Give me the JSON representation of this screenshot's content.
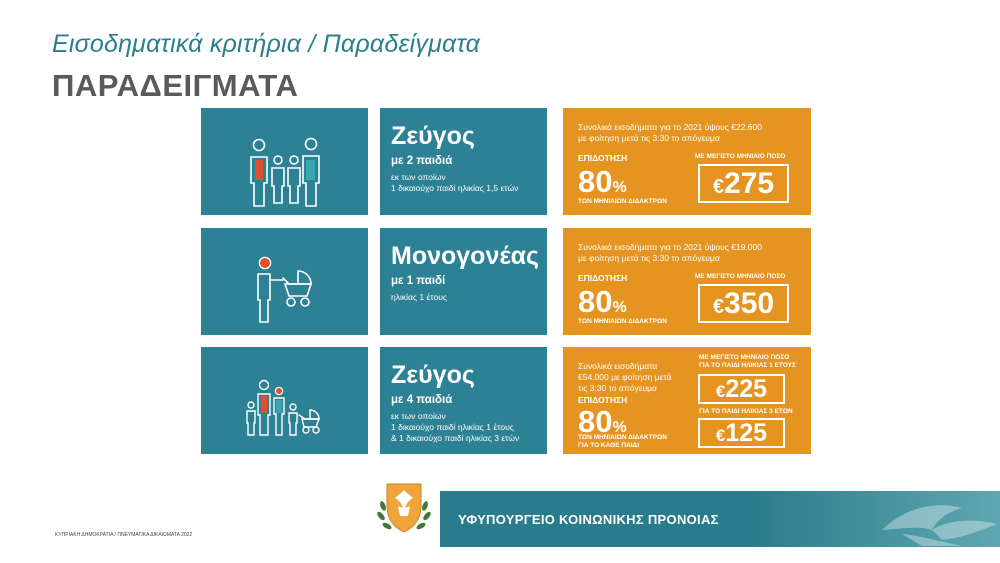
{
  "header": {
    "title": "Εισοδηματικά κριτήρια / Παραδείγματα",
    "heading": "ΠΑΡΑΔΕΙΓΜΑΤΑ"
  },
  "rows": [
    {
      "icon": "family-four-icon",
      "title": "Ζεύγος",
      "subtitle": "με 2 παιδιά",
      "desc_lines": [
        "εκ των οποίων",
        "1 δικαιούχο παιδί ηλικίας 1,5 ετών"
      ],
      "income_lines": [
        "Συνολικά εισοδήματα για το 2021 ύψους €22.600",
        "με φοίτηση μετά τις 3:30 το απόγευμα"
      ],
      "subsidy_label": "ΕΠΙΔΟΤΗΣΗ",
      "percent": "80",
      "percent_sign": "%",
      "fee_lines": [
        "ΤΩΝ ΜΗΝΙΑΙΩΝ ΔΙΔΑΚΤΡΩΝ"
      ],
      "max_label": "ΜΕ ΜΕΓΙΣΤΟ ΜΗΝΙΑΙΟ ΠΟΣΟ",
      "amount_symbol": "€",
      "amount": "275"
    },
    {
      "icon": "single-parent-stroller-icon",
      "title": "Μονογονέας",
      "subtitle": "με 1 παιδί",
      "desc_lines": [
        "ηλικίας 1 έτους"
      ],
      "income_lines": [
        "Συνολικά εισοδήματα για το 2021 ύψους €19.000",
        "με φοίτηση μετά τις 3:30 το απόγευμα"
      ],
      "subsidy_label": "ΕΠΙΔΟΤΗΣΗ",
      "percent": "80",
      "percent_sign": "%",
      "fee_lines": [
        "ΤΩΝ ΜΗΝΙΑΙΩΝ ΔΙΔΑΚΤΡΩΝ"
      ],
      "max_label": "ΜΕ ΜΕΓΙΣΤΟ ΜΗΝΙΑΙΟ ΠΟΣΟ",
      "amount_symbol": "€",
      "amount": "350"
    },
    {
      "icon": "large-family-stroller-icon",
      "title": "Ζεύγος",
      "subtitle": "με 4 παιδιά",
      "desc_lines": [
        "εκ των οποίων",
        "1 δικαιούχο παιδί ηλικίας 1 έτους",
        "& 1 δικαιούχο παιδί ηλικίας 3 ετών"
      ],
      "income_lines": [
        "Συνολικά εισοδήματα",
        "€54.000 με φοίτηση μετά",
        "τις 3:30 το απόγευμα"
      ],
      "subsidy_label": "ΕΠΙΔΟΤΗΣΗ",
      "percent": "80",
      "percent_sign": "%",
      "fee_lines": [
        "ΤΩΝ ΜΗΝΙΑΙΩΝ ΔΙΔΑΚΤΡΩΝ",
        "ΓΙΑ ΤΟ ΚΑΘΕ ΠΑΙΔΙ"
      ],
      "max_label_lines": [
        "ΜΕ ΜΕΓΙΣΤΟ ΜΗΝΙΑΙΟ ΠΟΣΟ",
        "ΓΙΑ ΤΟ ΠΑΙΔΙ ΗΛΙΚΙΑΣ 1 ΕΤΟΥΣ"
      ],
      "amount_symbol": "€",
      "amount": "225",
      "second_label": "ΓΙΑ ΤΟ ΠΑΙΔΙ ΗΛΙΚΙΑΣ 3 ΕΤΩΝ",
      "second_amount": "125"
    }
  ],
  "footer": {
    "ministry": "ΥΦΥΠΟΥΡΓΕΙΟ ΚΟΙΝΩΝΙΚΗΣ ΠΡΟΝΟΙΑΣ",
    "copyright": "ΚΥΠΡΙΑΚΗ ΔΗΜΟΚΡΑΤΙΑ / ΠΝΕΥΜΑΤΙΚΑ ΔΙΚΑΙΩΜΑΤΑ 2022"
  },
  "colors": {
    "teal": "#2c8194",
    "orange": "#e59422",
    "heading_gray": "#5a5a5a",
    "accent_red": "#e0502c"
  }
}
